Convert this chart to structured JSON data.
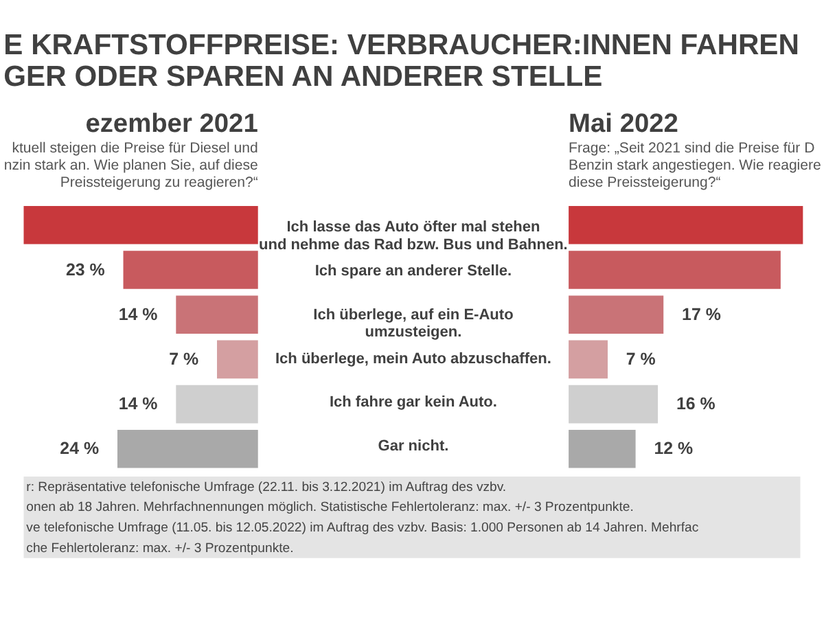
{
  "chart_data": [
    {
      "type": "other",
      "title": [
        "E KRAFTSTOFFPREISE: VERBRAUCHER:INNEN FAHREN",
        "GER ODER SPAREN AN ANDERER STELLE"
      ],
      "annotations": [
        "r: Repräsentative telefonische Umfrage (22.11. bis 3.12.2021) im Auftrag des vzbv.",
        "onen ab 18 Jahren. Mehrfachnennungen möglich. Statistische Fehlertoleranz: max. +/- 3 Prozentpunkte.",
        "ve telefonische Umfrage (11.05. bis 12.05.2022) im Auftrag des vzbv. Basis: 1.000 Personen ab 14 Jahren. Mehrfac",
        "che Fehlertoleranz: max. +/- 3 Prozentpunkte."
      ]
    },
    {
      "type": "bar",
      "orientation": "horizontal",
      "title": "ezember 2021",
      "subtitle": [
        "ktuell steigen die Preise für Diesel und",
        "nzin stark an. Wie planen Sie, auf diese",
        "Preissteigerung zu reagieren?“"
      ],
      "categories": [
        "Ich lasse das Auto öfter mal stehen und nehme das Rad bzw. Bus und Bahnen.",
        "Ich spare an anderer Stelle.",
        "Ich überlege, auf ein E-Auto umzusteigen.",
        "Ich überlege, mein Auto abzuschaffen.",
        "Ich fahre gar kein Auto.",
        "Gar nicht."
      ],
      "values": [
        40,
        23,
        14,
        7,
        14,
        24
      ],
      "value_labels": [
        null,
        "23 %",
        "14 %",
        "7 %",
        "14 %",
        "24 %"
      ],
      "colors": [
        "#c8383c",
        "#c85a5e",
        "#c97377",
        "#d49fa1",
        "#cfcfcf",
        "#a9a9a9"
      ],
      "tick_labels": "y"
    },
    {
      "type": "bar",
      "orientation": "horizontal",
      "title": "Mai 2022",
      "subtitle": [
        "Frage: „Seit 2021 sind die Preise für D",
        "Benzin stark angestiegen. Wie reagiere",
        "diese Preissteigerung?“"
      ],
      "categories": [
        "Ich lasse das Auto öfter mal stehen und nehme das Rad bzw. Bus und Bahnen.",
        "Ich spare an anderer Stelle.",
        "Ich überlege, auf ein E-Auto umzusteigen.",
        "Ich überlege, mein Auto abzuschaffen.",
        "Ich fahre gar kein Auto.",
        "Gar nicht."
      ],
      "values": [
        42,
        38,
        17,
        7,
        16,
        12
      ],
      "value_labels": [
        null,
        null,
        "17 %",
        "7 %",
        "16 %",
        "12 %"
      ],
      "colors": [
        "#c8383c",
        "#c85a5e",
        "#c97377",
        "#d49fa1",
        "#cfcfcf",
        "#a9a9a9"
      ],
      "tick_labels": false
    }
  ]
}
